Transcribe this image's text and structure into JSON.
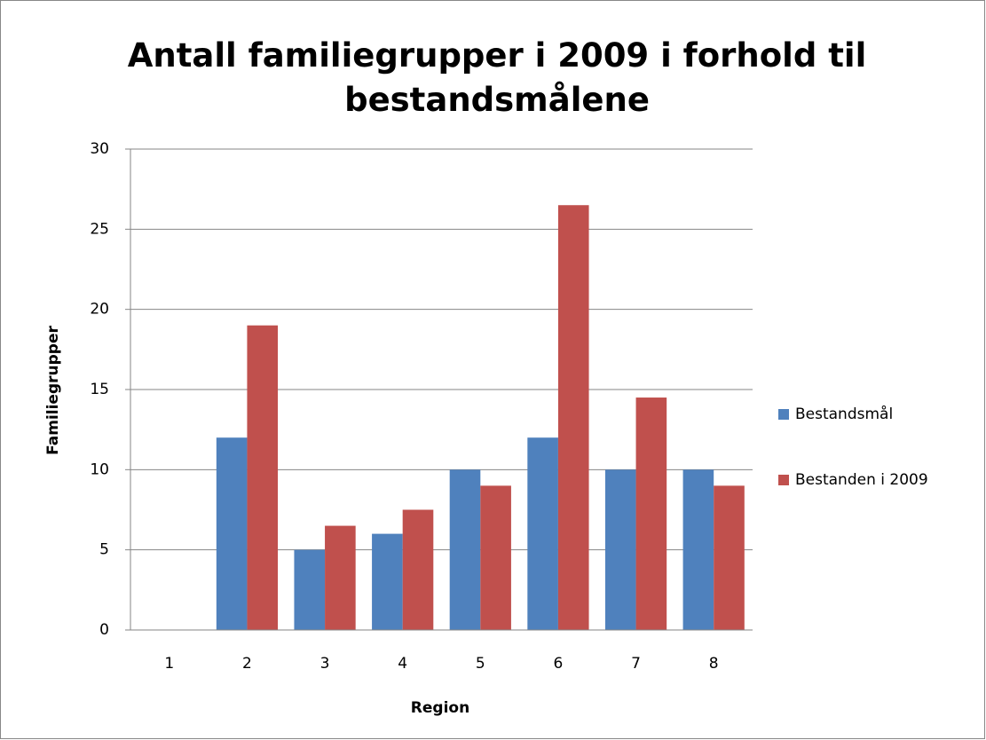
{
  "chart_data": {
    "type": "bar",
    "title": "Antall familiegrupper i 2009 i forhold til bestandsmålene",
    "x_label": "Region",
    "y_label": "Familiegrupper",
    "categories": [
      "1",
      "2",
      "3",
      "4",
      "5",
      "6",
      "7",
      "8"
    ],
    "series": [
      {
        "name": "Bestandsmål",
        "color": "#4f81bd",
        "values": [
          0,
          12,
          5,
          6,
          10,
          12,
          10,
          10
        ]
      },
      {
        "name": "Bestanden i 2009",
        "color": "#c0504d",
        "values": [
          0,
          19,
          6.5,
          7.5,
          9,
          26.5,
          14.5,
          9
        ]
      }
    ],
    "ylim": [
      0,
      30
    ],
    "yticks": [
      0,
      5,
      10,
      15,
      20,
      25,
      30
    ],
    "grid": true,
    "legend": "right"
  }
}
